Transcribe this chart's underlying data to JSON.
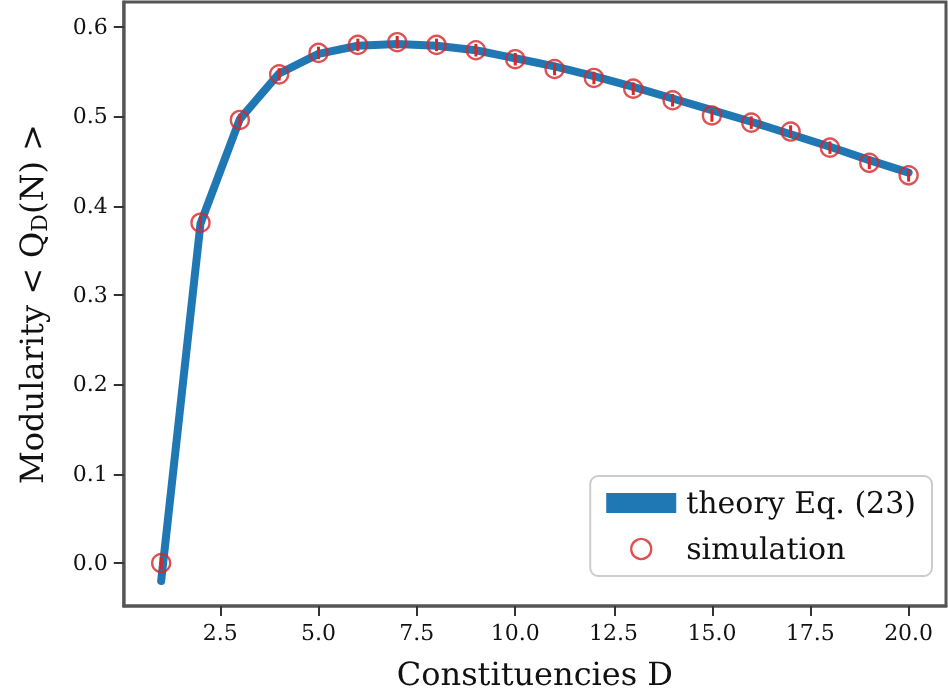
{
  "chart_data": {
    "type": "line",
    "xlabel": "Constituencies D",
    "ylabel": "Modularity < Q$_{D}$(N) >",
    "xlim": [
      0.05,
      20.95
    ],
    "ylim": [
      -0.048,
      0.628
    ],
    "xticks": [
      {
        "value": 2.5,
        "label": "2.5"
      },
      {
        "value": 5,
        "label": "5.0"
      },
      {
        "value": 7.5,
        "label": "7.5"
      },
      {
        "value": 10,
        "label": "10.0"
      },
      {
        "value": 12.5,
        "label": "12.5"
      },
      {
        "value": 15,
        "label": "15.0"
      },
      {
        "value": 17.5,
        "label": "17.5"
      },
      {
        "value": 20,
        "label": "20.0"
      }
    ],
    "yticks": [
      {
        "value": 0,
        "label": "0.0"
      },
      0.1,
      0.2,
      0.3,
      0.4,
      0.5,
      0.6
    ],
    "series": [
      {
        "name": "theory Eq. (23)",
        "color": "#1f77b4",
        "marker": "none",
        "x": [
          1,
          2,
          3,
          4,
          5,
          6,
          7,
          8,
          9,
          10,
          11,
          12,
          13,
          14,
          15,
          16,
          17,
          18,
          19,
          20
        ],
        "values": [
          -0.02,
          0.38,
          0.497,
          0.548,
          0.57,
          0.579,
          0.581,
          0.579,
          0.574,
          0.565,
          0.556,
          0.545,
          0.533,
          0.52,
          0.507,
          0.494,
          0.48,
          0.466,
          0.451,
          0.437
        ]
      },
      {
        "name": "simulation",
        "type": "scatter",
        "color": "#d62728",
        "marker": "circle",
        "x": [
          1,
          2,
          3,
          4,
          5,
          6,
          7,
          8,
          9,
          10,
          11,
          12,
          13,
          14,
          15,
          16,
          17,
          18,
          19,
          20
        ],
        "values": [
          0.0,
          0.381,
          0.496,
          0.547,
          0.571,
          0.58,
          0.583,
          0.58,
          0.574,
          0.564,
          0.553,
          0.543,
          0.531,
          0.518,
          0.501,
          0.493,
          0.483,
          0.465,
          0.448,
          0.434
        ],
        "errors": [
          0.007,
          0.007,
          0.007,
          0.007,
          0.007,
          0.007,
          0.007,
          0.007,
          0.007,
          0.007,
          0.007,
          0.007,
          0.007,
          0.007,
          0.007,
          0.007,
          0.007,
          0.007,
          0.007,
          0.007
        ]
      }
    ],
    "legend": "bottom right",
    "grid": false,
    "line_style": "solid"
  }
}
